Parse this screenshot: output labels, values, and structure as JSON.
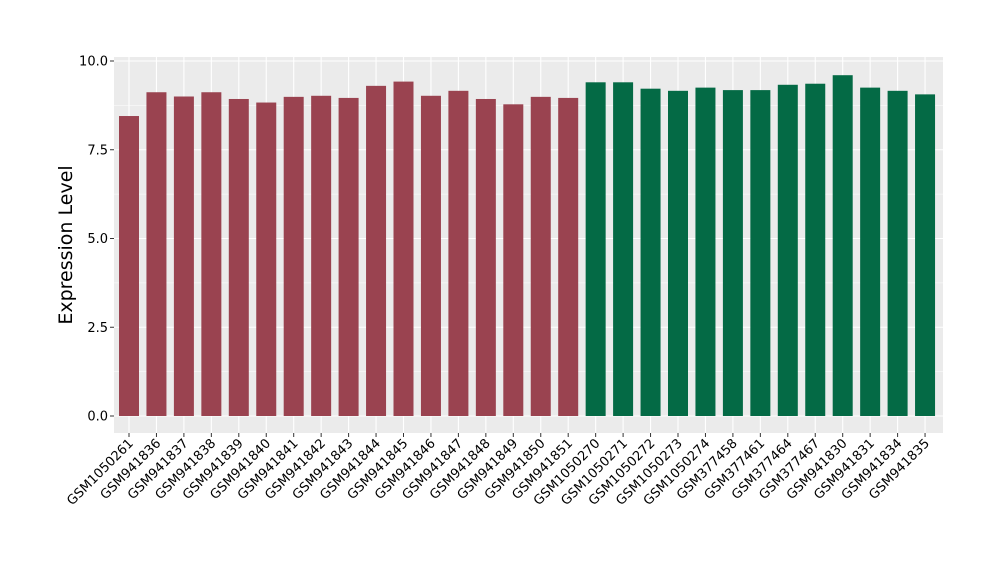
{
  "chart_data": {
    "type": "bar",
    "title": "",
    "xlabel": "",
    "ylabel": "Expression Level",
    "ylim": [
      0,
      10
    ],
    "yticks": [
      "0.0",
      "2.5",
      "5.0",
      "7.5",
      "10.0"
    ],
    "grid": true,
    "legend": "none",
    "categories": [
      "GSM1050261",
      "GSM941836",
      "GSM941837",
      "GSM941838",
      "GSM941839",
      "GSM941840",
      "GSM941841",
      "GSM941842",
      "GSM941843",
      "GSM941844",
      "GSM941845",
      "GSM941846",
      "GSM941847",
      "GSM941848",
      "GSM941849",
      "GSM941850",
      "GSM941851",
      "GSM1050270",
      "GSM1050271",
      "GSM1050272",
      "GSM1050273",
      "GSM1050274",
      "GSM377458",
      "GSM377461",
      "GSM377464",
      "GSM377467",
      "GSM941830",
      "GSM941831",
      "GSM941834",
      "GSM941835"
    ],
    "values": [
      8.45,
      9.12,
      9.0,
      9.12,
      8.93,
      8.83,
      8.99,
      9.02,
      8.96,
      9.3,
      9.42,
      9.02,
      9.16,
      8.93,
      8.78,
      8.99,
      8.96,
      9.4,
      9.4,
      9.22,
      9.16,
      9.25,
      9.18,
      9.18,
      9.33,
      9.36,
      9.6,
      9.25,
      9.16,
      9.06
    ],
    "bar_colors": [
      "#9a4350",
      "#9a4350",
      "#9a4350",
      "#9a4350",
      "#9a4350",
      "#9a4350",
      "#9a4350",
      "#9a4350",
      "#9a4350",
      "#9a4350",
      "#9a4350",
      "#9a4350",
      "#9a4350",
      "#9a4350",
      "#9a4350",
      "#9a4350",
      "#9a4350",
      "#046a45",
      "#046a45",
      "#046a45",
      "#046a45",
      "#046a45",
      "#046a45",
      "#046a45",
      "#046a45",
      "#046a45",
      "#046a45",
      "#046a45",
      "#046a45",
      "#046a45"
    ],
    "panel_background": "#ebebeb",
    "grid_color": "#ffffff"
  }
}
